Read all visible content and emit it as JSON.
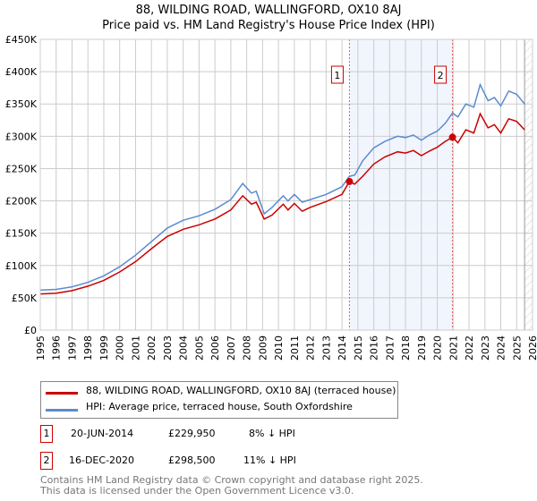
{
  "chart_data": {
    "type": "line",
    "title": "88, WILDING ROAD, WALLINGFORD, OX10 8AJ",
    "subtitle": "Price paid vs. HM Land Registry's House Price Index (HPI)",
    "xlim": [
      1995,
      2026
    ],
    "ylim": [
      0,
      450000
    ],
    "x_ticks": [
      "1995",
      "1996",
      "1997",
      "1998",
      "1999",
      "2000",
      "2001",
      "2002",
      "2003",
      "2004",
      "2005",
      "2006",
      "2007",
      "2008",
      "2009",
      "2010",
      "2011",
      "2012",
      "2013",
      "2014",
      "2015",
      "2016",
      "2017",
      "2018",
      "2019",
      "2020",
      "2021",
      "2022",
      "2023",
      "2024",
      "2025",
      "2026"
    ],
    "y_ticks": [
      "£0",
      "£50K",
      "£100K",
      "£150K",
      "£200K",
      "£250K",
      "£300K",
      "£350K",
      "£400K",
      "£450K"
    ],
    "grid": true,
    "series": [
      {
        "name": "HPI: Average price, terraced house, South Oxfordshire",
        "color": "#5b8bd0",
        "x": [
          1995,
          1996,
          1997,
          1998,
          1999,
          2000,
          2001,
          2002,
          2003,
          2004,
          2005,
          2006,
          2007,
          2007.75,
          2008.3,
          2008.6,
          2009.1,
          2009.6,
          2010.3,
          2010.6,
          2011,
          2011.5,
          2012,
          2013,
          2014,
          2014.47,
          2014.8,
          2015.3,
          2016,
          2016.7,
          2017.5,
          2018,
          2018.5,
          2019,
          2019.5,
          2020,
          2020.5,
          2020.96,
          2021.3,
          2021.8,
          2022.3,
          2022.7,
          2023.2,
          2023.6,
          2024,
          2024.5,
          2025,
          2025.5
        ],
        "y": [
          62000,
          63000,
          67000,
          74000,
          84000,
          98000,
          116000,
          137000,
          158000,
          170000,
          177000,
          187000,
          202000,
          227000,
          212000,
          215000,
          180000,
          190000,
          208000,
          200000,
          210000,
          198000,
          202000,
          210000,
          222000,
          238000,
          240000,
          262000,
          282000,
          292000,
          300000,
          298000,
          302000,
          294000,
          302000,
          308000,
          320000,
          336000,
          330000,
          350000,
          345000,
          380000,
          355000,
          360000,
          347000,
          370000,
          365000,
          350000
        ]
      },
      {
        "name": "88, WILDING ROAD, WALLINGFORD, OX10 8AJ (terraced house)",
        "color": "#cc0000",
        "x": [
          1995,
          1996,
          1997,
          1998,
          1999,
          2000,
          2001,
          2002,
          2003,
          2004,
          2005,
          2006,
          2007,
          2007.75,
          2008.3,
          2008.6,
          2009.1,
          2009.6,
          2010.3,
          2010.6,
          2011,
          2011.5,
          2012,
          2013,
          2014,
          2014.47,
          2014.8,
          2015.3,
          2016,
          2016.7,
          2017.5,
          2018,
          2018.5,
          2019,
          2019.5,
          2020,
          2020.5,
          2020.96,
          2021.3,
          2021.8,
          2022.3,
          2022.7,
          2023.2,
          2023.6,
          2024,
          2024.5,
          2025,
          2025.5
        ],
        "y": [
          56000,
          57000,
          61000,
          68000,
          77000,
          90000,
          106000,
          126000,
          145000,
          156000,
          163000,
          172000,
          186000,
          208000,
          195000,
          198000,
          172000,
          178000,
          195000,
          186000,
          196000,
          184000,
          190000,
          199000,
          210000,
          229950,
          226000,
          238000,
          257000,
          268000,
          276000,
          274000,
          278000,
          270000,
          277000,
          283000,
          292000,
          298500,
          290000,
          310000,
          305000,
          335000,
          313000,
          318000,
          305000,
          327000,
          323000,
          310000
        ]
      }
    ],
    "sales": [
      {
        "label": "1",
        "x": 2014.47,
        "y": 229950,
        "date": "20-JUN-2014",
        "price": "£229,950",
        "hpi": "8% ↓ HPI"
      },
      {
        "label": "2",
        "x": 2020.96,
        "y": 298500,
        "date": "16-DEC-2020",
        "price": "£298,500",
        "hpi": "11% ↓ HPI"
      }
    ],
    "shaded_range": [
      2014.47,
      2020.96
    ],
    "forecast_hatch_from": 2025.5,
    "legend_position": "below"
  },
  "footer": {
    "line1": "Contains HM Land Registry data © Crown copyright and database right 2025.",
    "line2": "This data is licensed under the Open Government Licence v3.0."
  }
}
